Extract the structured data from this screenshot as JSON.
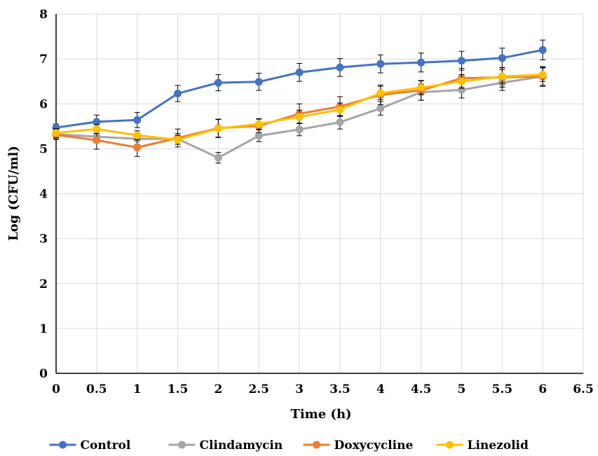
{
  "chart_data": {
    "type": "line",
    "title": "",
    "xlabel": "Time (h)",
    "ylabel": "Log (CFU/ml)",
    "xlim": [
      0,
      6.5
    ],
    "ylim": [
      0,
      8
    ],
    "xticks": [
      "0",
      "0.5",
      "1",
      "1.5",
      "2",
      "2.5",
      "3",
      "3.5",
      "4",
      "4.5",
      "5",
      "5.5",
      "6",
      "6.5"
    ],
    "yticks": [
      "0",
      "1",
      "2",
      "3",
      "4",
      "5",
      "6",
      "7",
      "8"
    ],
    "grid": true,
    "legend_position": "bottom",
    "x": [
      0,
      0.5,
      1,
      1.5,
      2,
      2.5,
      3,
      3.5,
      4,
      4.5,
      5,
      5.5,
      6
    ],
    "series": [
      {
        "name": "Control",
        "color": "#4472C4",
        "values": [
          5.47,
          5.6,
          5.64,
          6.23,
          6.47,
          6.49,
          6.7,
          6.81,
          6.89,
          6.92,
          6.96,
          7.02,
          7.2
        ],
        "errors": [
          0.08,
          0.15,
          0.17,
          0.18,
          0.18,
          0.19,
          0.2,
          0.2,
          0.2,
          0.21,
          0.21,
          0.22,
          0.22
        ]
      },
      {
        "name": "Clindamycin",
        "color": "#A5A5A5",
        "values": [
          5.32,
          5.27,
          5.22,
          5.22,
          4.8,
          5.29,
          5.43,
          5.59,
          5.9,
          6.26,
          6.31,
          6.47,
          6.61
        ],
        "errors": [
          0.1,
          0.1,
          0.12,
          0.12,
          0.12,
          0.13,
          0.14,
          0.15,
          0.15,
          0.18,
          0.18,
          0.17,
          0.2
        ]
      },
      {
        "name": "Doxycycline",
        "color": "#ED7D31",
        "values": [
          5.31,
          5.19,
          5.03,
          5.24,
          5.46,
          5.51,
          5.78,
          5.94,
          6.2,
          6.3,
          6.57,
          6.59,
          6.61
        ],
        "errors": [
          0.1,
          0.2,
          0.2,
          0.2,
          0.2,
          0.15,
          0.22,
          0.22,
          0.22,
          0.22,
          0.22,
          0.22,
          0.22
        ]
      },
      {
        "name": "Linezolid",
        "color": "#FFC000",
        "values": [
          5.35,
          5.44,
          5.3,
          5.2,
          5.45,
          5.55,
          5.71,
          5.87,
          6.24,
          6.36,
          6.5,
          6.61,
          6.65
        ],
        "errors": [
          0.1,
          0.1,
          0.1,
          0.1,
          0.2,
          0.12,
          0.15,
          0.15,
          0.15,
          0.15,
          0.15,
          0.15,
          0.15
        ]
      }
    ]
  }
}
